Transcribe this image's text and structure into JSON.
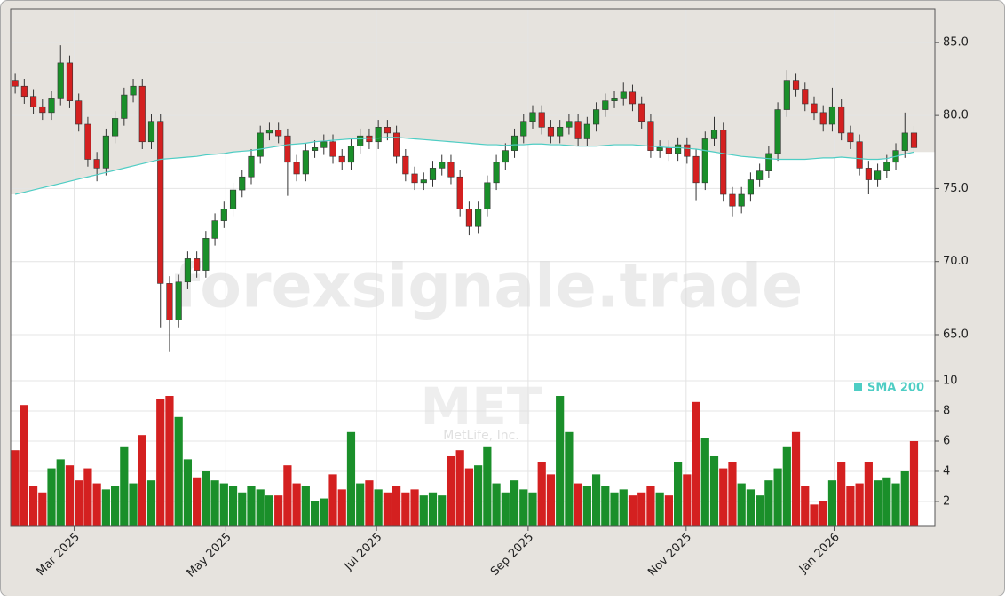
{
  "chart_data": {
    "type": "candlestick",
    "watermark": "forexsignale.trade",
    "ticker": "MET",
    "company": "MetLife, Inc.",
    "grid": true,
    "up_color": "#1a8f2a",
    "down_color": "#d42020",
    "xlim": [
      -0.5,
      101.3
    ],
    "xticks": [
      {
        "value": 6.5,
        "label": "Mar 2025"
      },
      {
        "value": 23.2,
        "label": "May 2025"
      },
      {
        "value": 39.8,
        "label": "Jul 2025"
      },
      {
        "value": 56.5,
        "label": "Sep 2025"
      },
      {
        "value": 73.9,
        "label": "Nov 2025"
      },
      {
        "value": 90.2,
        "label": "Jan 2026"
      }
    ],
    "ylim": [
      61.9,
      87.3
    ],
    "yticks": [
      {
        "value": 65,
        "label": "65.0"
      },
      {
        "value": 70,
        "label": "70.0"
      },
      {
        "value": 75,
        "label": "75.0"
      },
      {
        "value": 80,
        "label": "80.0"
      },
      {
        "value": 85,
        "label": "85.0"
      }
    ],
    "ohlc": [
      [
        82.4,
        82.9,
        81.5,
        82.0
      ],
      [
        82.0,
        82.5,
        80.8,
        81.3
      ],
      [
        81.3,
        81.8,
        80.1,
        80.6
      ],
      [
        80.6,
        81.1,
        79.7,
        80.2
      ],
      [
        80.2,
        81.7,
        79.7,
        81.2
      ],
      [
        81.2,
        84.8,
        80.7,
        83.6
      ],
      [
        83.6,
        84.1,
        80.5,
        81.0
      ],
      [
        81.0,
        81.5,
        78.9,
        79.4
      ],
      [
        79.4,
        79.9,
        76.5,
        77.0
      ],
      [
        77.0,
        77.5,
        75.5,
        76.4
      ],
      [
        76.4,
        79.1,
        75.9,
        78.6
      ],
      [
        78.6,
        80.3,
        78.1,
        79.8
      ],
      [
        79.8,
        81.9,
        79.3,
        81.4
      ],
      [
        81.4,
        82.5,
        80.9,
        82.0
      ],
      [
        82.0,
        82.5,
        77.7,
        78.2
      ],
      [
        78.2,
        80.1,
        77.7,
        79.6
      ],
      [
        79.6,
        80.1,
        65.5,
        68.5
      ],
      [
        68.5,
        69.0,
        63.8,
        66.0
      ],
      [
        66.0,
        69.1,
        65.5,
        68.6
      ],
      [
        68.6,
        70.7,
        68.1,
        70.2
      ],
      [
        70.2,
        70.7,
        68.9,
        69.4
      ],
      [
        69.4,
        72.1,
        68.9,
        71.6
      ],
      [
        71.6,
        73.3,
        71.1,
        72.8
      ],
      [
        72.8,
        74.1,
        72.3,
        73.6
      ],
      [
        73.6,
        75.4,
        73.1,
        74.9
      ],
      [
        74.9,
        76.3,
        74.4,
        75.8
      ],
      [
        75.8,
        77.7,
        75.3,
        77.2
      ],
      [
        77.2,
        79.3,
        76.7,
        78.8
      ],
      [
        78.8,
        79.5,
        78.3,
        79.0
      ],
      [
        79.0,
        79.5,
        78.1,
        78.6
      ],
      [
        78.6,
        79.1,
        74.5,
        76.8
      ],
      [
        76.8,
        77.3,
        75.5,
        76.0
      ],
      [
        76.0,
        78.1,
        75.5,
        77.6
      ],
      [
        77.6,
        78.3,
        77.1,
        77.8
      ],
      [
        77.8,
        78.7,
        77.3,
        78.2
      ],
      [
        78.2,
        78.7,
        76.7,
        77.2
      ],
      [
        77.2,
        77.7,
        76.3,
        76.8
      ],
      [
        76.8,
        78.4,
        76.3,
        77.9
      ],
      [
        77.9,
        79.1,
        77.4,
        78.6
      ],
      [
        78.6,
        79.1,
        77.7,
        78.2
      ],
      [
        78.2,
        79.7,
        77.7,
        79.2
      ],
      [
        79.2,
        79.7,
        78.3,
        78.8
      ],
      [
        78.8,
        79.3,
        76.7,
        77.2
      ],
      [
        77.2,
        77.7,
        75.5,
        76.0
      ],
      [
        76.0,
        76.5,
        74.9,
        75.4
      ],
      [
        75.4,
        76.1,
        74.9,
        75.6
      ],
      [
        75.6,
        76.9,
        75.1,
        76.4
      ],
      [
        76.4,
        77.3,
        75.9,
        76.8
      ],
      [
        76.8,
        77.3,
        75.3,
        75.8
      ],
      [
        75.8,
        76.3,
        73.1,
        73.6
      ],
      [
        73.6,
        74.1,
        71.8,
        72.4
      ],
      [
        72.4,
        74.1,
        71.9,
        73.6
      ],
      [
        73.6,
        75.9,
        73.1,
        75.4
      ],
      [
        75.4,
        77.3,
        74.9,
        76.8
      ],
      [
        76.8,
        78.1,
        76.3,
        77.6
      ],
      [
        77.6,
        79.1,
        77.1,
        78.6
      ],
      [
        78.6,
        80.1,
        78.1,
        79.6
      ],
      [
        79.6,
        80.7,
        79.1,
        80.2
      ],
      [
        80.2,
        80.7,
        78.7,
        79.2
      ],
      [
        79.2,
        79.7,
        78.1,
        78.6
      ],
      [
        78.6,
        79.7,
        78.1,
        79.2
      ],
      [
        79.2,
        80.1,
        78.7,
        79.6
      ],
      [
        79.6,
        80.1,
        77.9,
        78.4
      ],
      [
        78.4,
        79.9,
        77.9,
        79.4
      ],
      [
        79.4,
        80.9,
        78.9,
        80.4
      ],
      [
        80.4,
        81.5,
        79.9,
        81.0
      ],
      [
        81.0,
        81.7,
        80.5,
        81.2
      ],
      [
        81.2,
        82.3,
        80.7,
        81.6
      ],
      [
        81.6,
        82.1,
        80.3,
        80.8
      ],
      [
        80.8,
        81.3,
        79.1,
        79.6
      ],
      [
        79.6,
        80.1,
        77.1,
        77.6
      ],
      [
        77.6,
        78.3,
        77.1,
        77.8
      ],
      [
        77.8,
        78.3,
        76.9,
        77.4
      ],
      [
        77.4,
        78.5,
        76.9,
        78.0
      ],
      [
        78.0,
        78.5,
        76.7,
        77.2
      ],
      [
        77.2,
        77.7,
        74.2,
        75.4
      ],
      [
        75.4,
        78.9,
        74.9,
        78.4
      ],
      [
        78.4,
        79.9,
        77.9,
        79.0
      ],
      [
        79.0,
        79.5,
        74.1,
        74.6
      ],
      [
        74.6,
        75.1,
        73.1,
        73.8
      ],
      [
        73.8,
        75.1,
        73.3,
        74.6
      ],
      [
        74.6,
        76.1,
        74.1,
        75.6
      ],
      [
        75.6,
        76.7,
        75.1,
        76.2
      ],
      [
        76.2,
        77.9,
        75.7,
        77.4
      ],
      [
        77.4,
        80.9,
        76.9,
        80.4
      ],
      [
        80.4,
        83.1,
        79.9,
        82.4
      ],
      [
        82.4,
        82.9,
        81.3,
        81.8
      ],
      [
        81.8,
        82.3,
        80.3,
        80.8
      ],
      [
        80.8,
        81.3,
        79.7,
        80.2
      ],
      [
        80.2,
        80.7,
        78.9,
        79.4
      ],
      [
        79.4,
        81.9,
        78.9,
        80.6
      ],
      [
        80.6,
        81.1,
        78.3,
        78.8
      ],
      [
        78.8,
        79.3,
        77.7,
        78.2
      ],
      [
        78.2,
        78.7,
        75.9,
        76.4
      ],
      [
        76.4,
        76.9,
        74.6,
        75.6
      ],
      [
        75.6,
        76.7,
        75.1,
        76.2
      ],
      [
        76.2,
        77.3,
        75.7,
        76.8
      ],
      [
        76.8,
        78.1,
        76.3,
        77.6
      ],
      [
        77.6,
        80.2,
        77.1,
        78.8
      ],
      [
        78.8,
        79.3,
        77.3,
        77.8
      ]
    ],
    "sma": {
      "name": "SMA 200",
      "color": "#4ecdc4",
      "values": [
        74.6,
        74.75,
        74.9,
        75.05,
        75.2,
        75.35,
        75.5,
        75.65,
        75.8,
        75.95,
        76.1,
        76.25,
        76.4,
        76.55,
        76.7,
        76.85,
        77.0,
        77.05,
        77.1,
        77.15,
        77.2,
        77.3,
        77.35,
        77.4,
        77.5,
        77.55,
        77.6,
        77.7,
        77.8,
        77.9,
        78.0,
        78.05,
        78.1,
        78.2,
        78.25,
        78.3,
        78.35,
        78.4,
        78.4,
        78.45,
        78.45,
        78.5,
        78.5,
        78.45,
        78.4,
        78.35,
        78.3,
        78.25,
        78.2,
        78.15,
        78.1,
        78.05,
        78.0,
        78.0,
        77.95,
        78.0,
        78.0,
        78.05,
        78.05,
        78.0,
        78.0,
        77.95,
        77.9,
        77.9,
        77.9,
        77.95,
        78.0,
        78.0,
        78.0,
        77.95,
        77.9,
        77.85,
        77.8,
        77.8,
        77.75,
        77.7,
        77.6,
        77.5,
        77.4,
        77.3,
        77.2,
        77.15,
        77.1,
        77.05,
        77.0,
        77.0,
        77.0,
        77.0,
        77.05,
        77.1,
        77.1,
        77.15,
        77.1,
        77.05,
        77.0,
        77.0,
        77.05,
        77.2,
        77.35,
        77.5
      ]
    },
    "volume": {
      "ylim": [
        0.35,
        10.06
      ],
      "yticks": [
        2,
        4,
        6,
        8,
        10
      ],
      "values": [
        5.4,
        8.4,
        3.0,
        2.6,
        4.2,
        4.8,
        4.4,
        3.4,
        4.2,
        3.2,
        2.8,
        3.0,
        5.6,
        3.2,
        6.4,
        3.4,
        8.8,
        9.0,
        7.6,
        4.8,
        3.6,
        4.0,
        3.4,
        3.2,
        3.0,
        2.6,
        3.0,
        2.8,
        2.4,
        2.4,
        4.4,
        3.2,
        3.0,
        2.0,
        2.2,
        3.8,
        2.8,
        6.6,
        3.2,
        3.4,
        2.8,
        2.6,
        3.0,
        2.6,
        2.8,
        2.4,
        2.6,
        2.4,
        5.0,
        5.4,
        4.2,
        4.4,
        5.6,
        3.2,
        2.6,
        3.4,
        2.8,
        2.6,
        4.6,
        3.8,
        9.0,
        6.6,
        3.2,
        3.0,
        3.8,
        3.0,
        2.6,
        2.8,
        2.4,
        2.6,
        3.0,
        2.6,
        2.4,
        4.6,
        3.8,
        8.6,
        6.2,
        5.0,
        4.2,
        4.6,
        3.2,
        2.8,
        2.4,
        3.4,
        4.2,
        5.6,
        6.6,
        3.0,
        1.8,
        2.0,
        3.4,
        4.6,
        3.0,
        3.2,
        4.6,
        3.4,
        3.6,
        3.2,
        4.0,
        6.0
      ]
    }
  }
}
